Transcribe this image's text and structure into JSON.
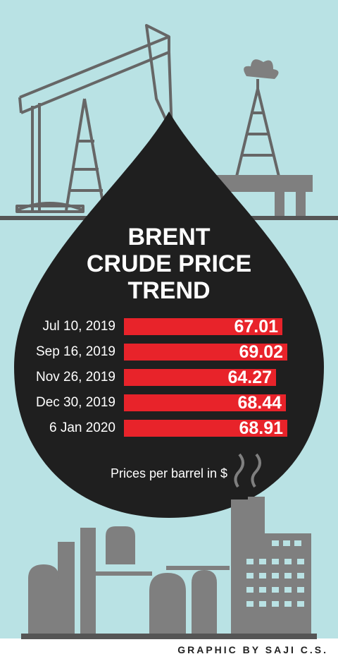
{
  "colors": {
    "background": "#b9e2e4",
    "drop": "#1f1f1f",
    "bar": "#e8232a",
    "machinery": "#7f7f7f",
    "ground": "#555555"
  },
  "icons": [
    "oil-pumpjack-icon",
    "oil-rig-icon",
    "oil-drop-icon",
    "refinery-icon"
  ],
  "chart_data": {
    "type": "bar",
    "orientation": "horizontal",
    "title_lines": [
      "BRENT",
      "CRUDE PRICE",
      "TREND"
    ],
    "categories": [
      "Jul 10, 2019",
      "Sep 16, 2019",
      "Nov 26, 2019",
      "Dec 30, 2019",
      "6 Jan 2020"
    ],
    "values": [
      67.01,
      69.02,
      64.27,
      68.44,
      68.91
    ],
    "value_labels": [
      "67.01",
      "69.02",
      "64.27",
      "68.44",
      "68.91"
    ],
    "footnote": "Prices per barrel in $",
    "grid": false
  },
  "credit": "GRAPHIC BY SAJI C.S."
}
